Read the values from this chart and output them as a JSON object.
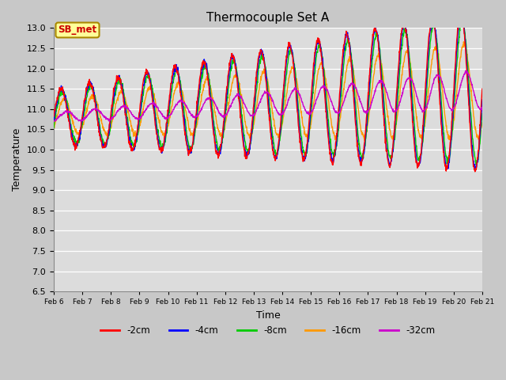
{
  "title": "Thermocouple Set A",
  "xlabel": "Time",
  "ylabel": "Temperature",
  "ylim": [
    6.5,
    13.0
  ],
  "yticks": [
    6.5,
    7.0,
    7.5,
    8.0,
    8.5,
    9.0,
    9.5,
    10.0,
    10.5,
    11.0,
    11.5,
    12.0,
    12.5,
    13.0
  ],
  "legend_labels": [
    "-2cm",
    "-4cm",
    "-8cm",
    "-16cm",
    "-32cm"
  ],
  "legend_colors": [
    "#ff0000",
    "#0000ff",
    "#00cc00",
    "#ff9900",
    "#cc00cc"
  ],
  "fig_bg_color": "#c8c8c8",
  "ax_bg_color": "#dcdcdc",
  "annotation_label": "SB_met",
  "annotation_color": "#cc0000",
  "annotation_bg": "#ffff99",
  "annotation_border": "#aa8800",
  "n_points": 1500,
  "x_start": 6.0,
  "x_end": 21.0,
  "xtick_positions": [
    6,
    7,
    8,
    9,
    10,
    11,
    12,
    13,
    14,
    15,
    16,
    17,
    18,
    19,
    20,
    21
  ],
  "xtick_labels": [
    "Feb 6",
    "Feb 7",
    "Feb 8",
    "Feb 9",
    "Feb 10",
    "Feb 11",
    "Feb 12",
    "Feb 13",
    "Feb 14",
    "Feb 15",
    "Feb 16",
    "Feb 17",
    "Feb 18",
    "Feb 19",
    "Feb 20",
    "Feb 21"
  ]
}
